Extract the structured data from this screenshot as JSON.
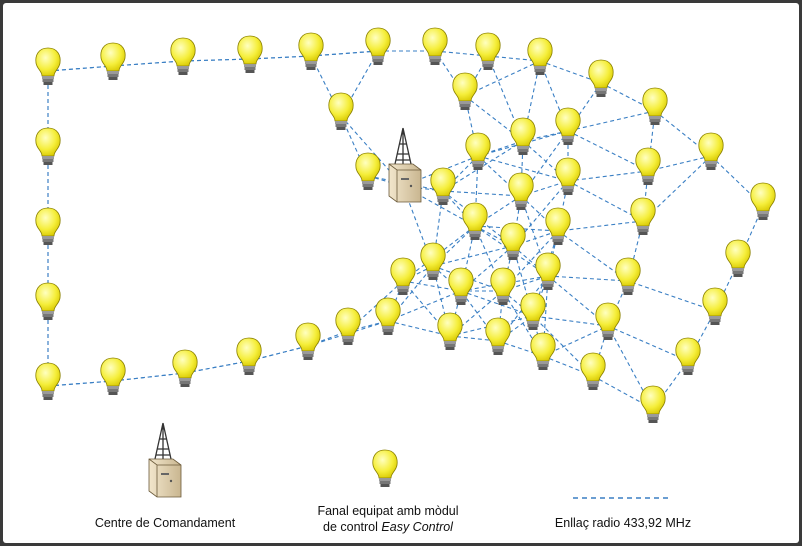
{
  "legend": {
    "items": [
      {
        "label": "Centre de Comandament"
      },
      {
        "lines": [
          "Fanal equipat amb mòdul",
          "de control"
        ],
        "emphasis": "Easy Control"
      },
      {
        "label": "Enllaç radio 433,92 MHz"
      }
    ]
  }
}
